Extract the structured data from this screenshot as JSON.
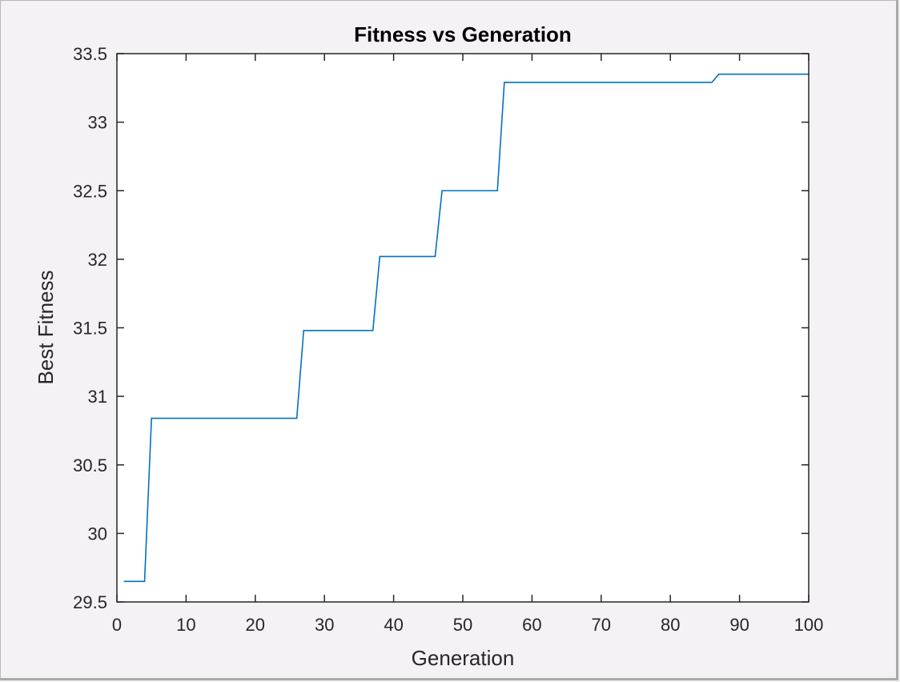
{
  "chart_data": {
    "type": "line",
    "title": "Fitness vs Generation",
    "xlabel": "Generation",
    "ylabel": "Best Fitness",
    "xlim": [
      0,
      100
    ],
    "ylim": [
      29.5,
      33.5
    ],
    "xticks": [
      "0",
      "10",
      "20",
      "30",
      "40",
      "50",
      "60",
      "70",
      "80",
      "90",
      "100"
    ],
    "yticks": [
      "29.5",
      "30",
      "30.5",
      "31",
      "31.5",
      "32",
      "32.5",
      "33",
      "33.5"
    ],
    "grid": false,
    "line_color": "#0072bd",
    "series": [
      {
        "x": [
          1,
          4,
          5,
          26,
          27,
          37,
          38,
          46,
          47,
          55,
          56,
          86,
          87,
          100
        ],
        "y": [
          29.65,
          29.65,
          30.84,
          30.84,
          31.48,
          31.48,
          32.02,
          32.02,
          32.5,
          32.5,
          33.29,
          33.29,
          33.35,
          33.35
        ]
      }
    ]
  }
}
